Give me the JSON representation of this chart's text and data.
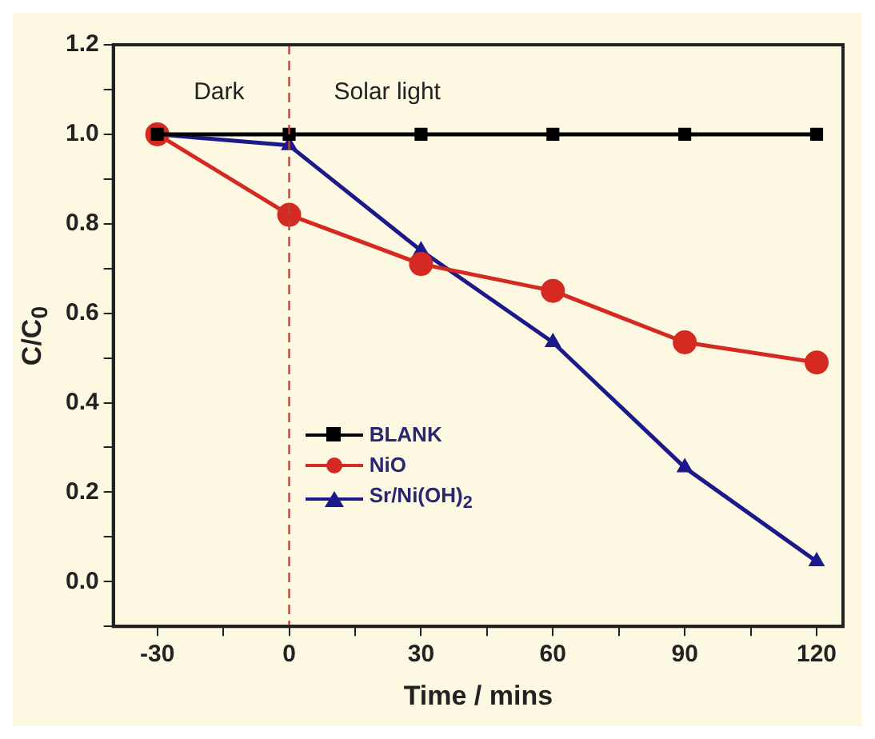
{
  "chart_data": {
    "type": "line",
    "xlabel": "Time / mins",
    "ylabel": "C/C$_{0}$",
    "x": [
      -30,
      0,
      30,
      60,
      90,
      120
    ],
    "series": [
      {
        "name": "BLANK",
        "color": "#000000",
        "marker": "square",
        "values": [
          1.0,
          1.0,
          1.0,
          1.0,
          1.0,
          1.0
        ]
      },
      {
        "name": "NiO",
        "color": "#d42a22",
        "marker": "circle",
        "values": [
          1.0,
          0.82,
          0.71,
          0.65,
          0.535,
          0.49
        ]
      },
      {
        "name": "Sr/Ni(OH)$_{2}$",
        "color": "#1c1a8a",
        "marker": "triangle",
        "values": [
          1.0,
          0.975,
          0.74,
          0.535,
          0.255,
          0.045
        ]
      }
    ],
    "xlim": [
      -40,
      126
    ],
    "ylim": [
      -0.1,
      1.2
    ],
    "xticks": [
      -30,
      {
        "value": -15,
        "label": null
      },
      0,
      {
        "value": 15,
        "label": null
      },
      30,
      {
        "value": 45,
        "label": null
      },
      60,
      {
        "value": 75,
        "label": null
      },
      90,
      {
        "value": 105,
        "label": null
      },
      120
    ],
    "yticks": [
      {
        "value": -0.1,
        "label": null
      },
      {
        "value": 0,
        "label": "0.0"
      },
      {
        "value": 0.1,
        "label": null
      },
      0.2,
      {
        "value": 0.3,
        "label": null
      },
      0.4,
      {
        "value": 0.5,
        "label": null
      },
      0.6,
      {
        "value": 0.7,
        "label": null
      },
      0.8,
      {
        "value": 0.9,
        "label": null
      },
      {
        "value": 1,
        "label": "1.0"
      },
      {
        "value": 1.1,
        "label": null
      },
      1.2
    ],
    "ref_lines": [
      {
        "axis": "x",
        "value": 0,
        "color": "#b5473a",
        "line_style": "dashed"
      }
    ],
    "annotations": [
      "Dark",
      "Solar light"
    ],
    "legend": "center left",
    "grid": false,
    "line_style": "solid"
  }
}
